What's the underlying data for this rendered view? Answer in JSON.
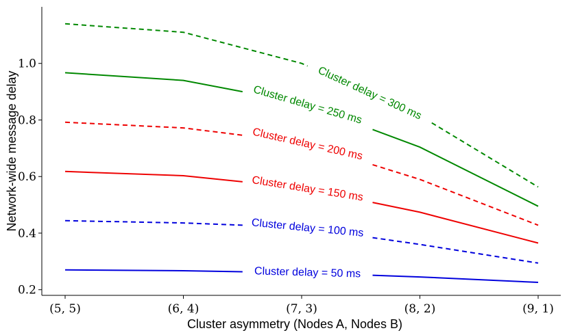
{
  "chart_data": {
    "type": "line",
    "title": "",
    "xlabel": "Cluster asymmetry (Nodes A, Nodes B)",
    "ylabel": "Network-wide message delay",
    "categories": [
      "(5, 5)",
      "(6, 4)",
      "(7, 3)",
      "(8, 2)",
      "(9, 1)"
    ],
    "ylim": [
      0.18,
      1.2
    ],
    "yticks": [
      0.2,
      0.4,
      0.6,
      0.8,
      1.0
    ],
    "ytick_labels": [
      "0.2",
      "0.4",
      "0.6",
      "0.8",
      "1.0"
    ],
    "grid": false,
    "legend": "none",
    "series": [
      {
        "name": "Cluster delay = 50 ms",
        "color": "#0000dd",
        "style": "solid",
        "values": [
          0.27,
          0.267,
          0.26,
          0.245,
          0.226
        ]
      },
      {
        "name": "Cluster delay = 100 ms",
        "color": "#0000dd",
        "style": "dashed",
        "values": [
          0.444,
          0.436,
          0.42,
          0.36,
          0.294
        ]
      },
      {
        "name": "Cluster delay = 150 ms",
        "color": "#ee0000",
        "style": "solid",
        "values": [
          0.618,
          0.603,
          0.56,
          0.474,
          0.365
        ]
      },
      {
        "name": "Cluster delay = 200 ms",
        "color": "#ee0000",
        "style": "dashed",
        "values": [
          0.792,
          0.772,
          0.72,
          0.59,
          0.428
        ]
      },
      {
        "name": "Cluster delay = 250 ms",
        "color": "#008800",
        "style": "solid",
        "values": [
          0.967,
          0.94,
          0.86,
          0.704,
          0.495
        ]
      },
      {
        "name": "Cluster delay = 300 ms",
        "color": "#008800",
        "style": "dashed",
        "values": [
          1.14,
          1.11,
          1.0,
          0.815,
          0.563
        ]
      }
    ]
  }
}
